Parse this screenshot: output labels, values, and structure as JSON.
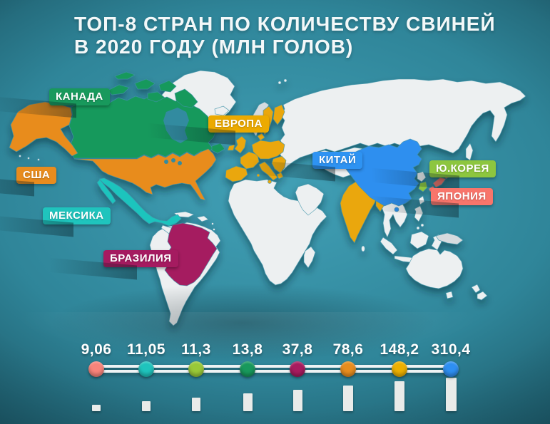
{
  "title": {
    "line1": "ТОП-8 СТРАН ПО КОЛИЧЕСТВУ СВИНЕЙ",
    "line2": "В 2020 ГОДУ (МЛН ГОЛОВ)"
  },
  "map": {
    "labels": [
      {
        "id": "canada",
        "label": "КАНАДА",
        "color": "#18995c"
      },
      {
        "id": "usa",
        "label": "США",
        "color": "#e88c1e"
      },
      {
        "id": "mexico",
        "label": "МЕКСИКА",
        "color": "#1fc4bd"
      },
      {
        "id": "brazil",
        "label": "БРАЗИЛИЯ",
        "color": "#a51b60"
      },
      {
        "id": "europe",
        "label": "ЕВРОПА",
        "color": "#ecaa00"
      },
      {
        "id": "china",
        "label": "КИТАЙ",
        "color": "#2e93f2"
      },
      {
        "id": "skorea",
        "label": "Ю.КОРЕЯ",
        "color": "#8dc63f"
      },
      {
        "id": "japan",
        "label": "ЯПОНИЯ",
        "color": "#f8756b"
      }
    ],
    "region_colors": {
      "canada": "#18995c",
      "usa": "#e88c1e",
      "mexico": "#1fc4bd",
      "brazil": "#a51b60",
      "europe": "#eaa70b",
      "india": "#eaa70b",
      "china": "#2e8fef",
      "skorea": "#8dc63f",
      "japan": "#f8756b",
      "land": "#edf0f1",
      "land_shaded": "#d6dbde",
      "water_inset": "#338ba0"
    }
  },
  "chart_data": {
    "type": "bar",
    "title": "ТОП-8 СТРАН ПО КОЛИЧЕСТВУ СВИНЕЙ В 2020 ГОДУ (МЛН ГОЛОВ)",
    "unit": "млн голов",
    "year": "2020",
    "categories": [
      "ЯПОНИЯ",
      "МЕКСИКА",
      "Ю.КОРЕЯ",
      "КАНАДА",
      "БРАЗИЛИЯ",
      "США",
      "ЕВРОПА",
      "КИТАЙ"
    ],
    "values": [
      9.06,
      11.05,
      11.3,
      13.8,
      37.8,
      78.6,
      148.2,
      310.4
    ],
    "value_labels": [
      "9,06",
      "11,05",
      "11,3",
      "13,8",
      "37,8",
      "78,6",
      "148,2",
      "310,4"
    ],
    "colors": [
      "#f8847b",
      "#1fc4bd",
      "#99c938",
      "#18995c",
      "#a81b5f",
      "#e88d1e",
      "#ecb000",
      "#2e8ff2"
    ],
    "legend_position": "none",
    "grid": false
  }
}
